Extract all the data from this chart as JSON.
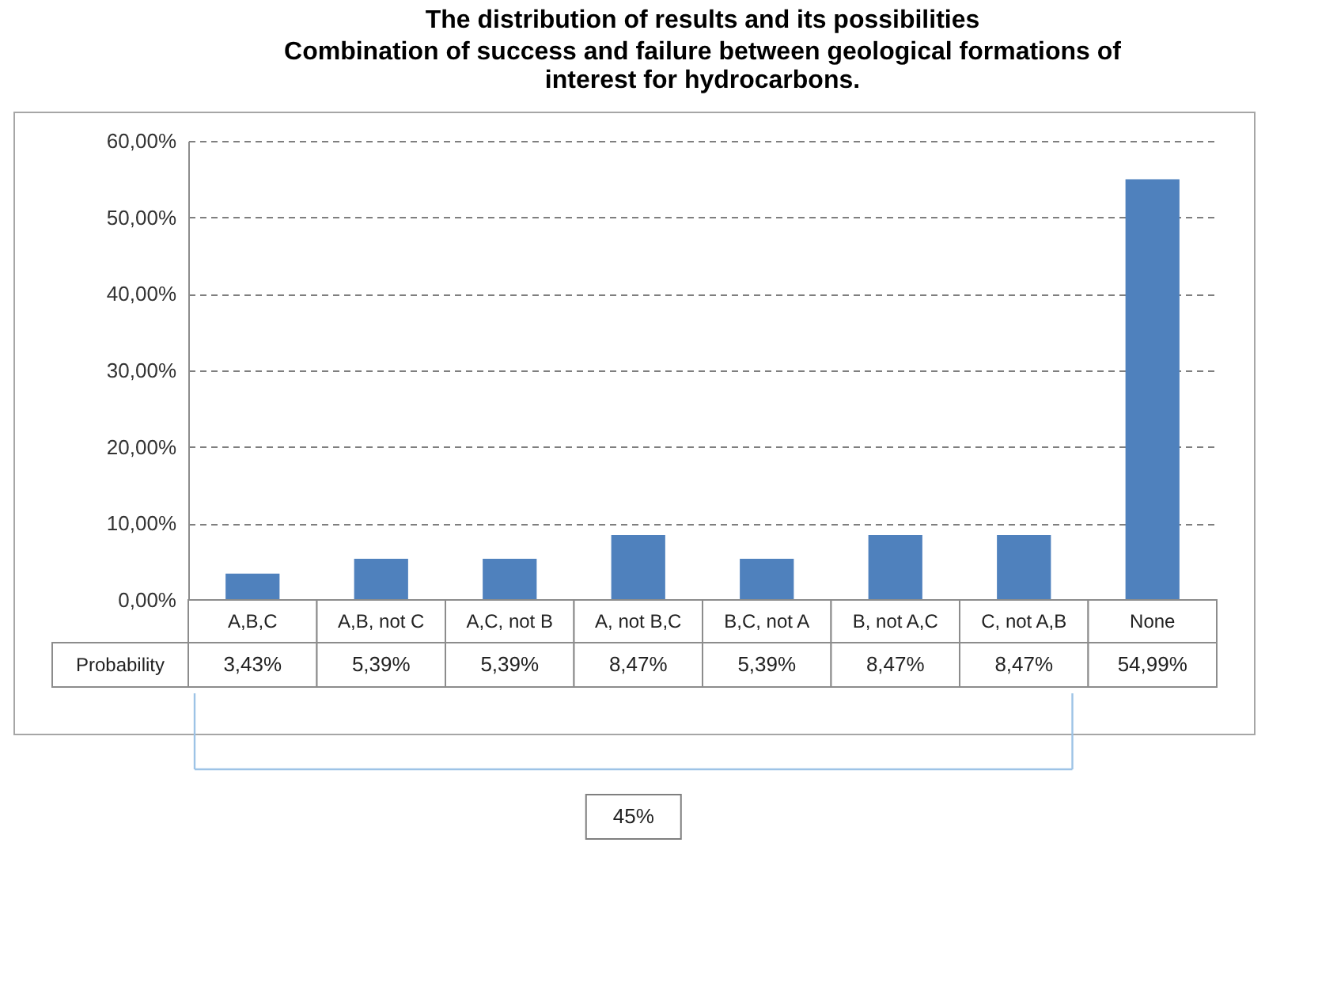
{
  "chart_data": {
    "type": "bar",
    "title": "The distribution of results and its possibilities",
    "subtitle": "Combination of success and failure between geological formations of interest for hydrocarbons.",
    "categories": [
      "A,B,C",
      "A,B, not C",
      "A,C, not B",
      "A, not B,C",
      "B,C, not A",
      "B, not A,C",
      "C, not A,B",
      "None"
    ],
    "series": [
      {
        "name": "Probability",
        "color": "#4f81bd",
        "values": [
          3.43,
          5.39,
          5.39,
          8.47,
          5.39,
          8.47,
          8.47,
          54.99
        ],
        "value_labels": [
          "3,43%",
          "5,39%",
          "5,39%",
          "8,47%",
          "5,39%",
          "8,47%",
          "8,47%",
          "54,99%"
        ]
      }
    ],
    "ylim": [
      0,
      60
    ],
    "yticks": [
      {
        "value": 0,
        "label": "0,00%"
      },
      {
        "value": 10,
        "label": "10,00%"
      },
      {
        "value": 20,
        "label": "20,00%"
      },
      {
        "value": 30,
        "label": "30,00%"
      },
      {
        "value": 40,
        "label": "40,00%"
      },
      {
        "value": 50,
        "label": "50,00%"
      },
      {
        "value": 60,
        "label": "60,00%"
      }
    ],
    "grid": "y",
    "annotations": [
      "45%"
    ]
  }
}
